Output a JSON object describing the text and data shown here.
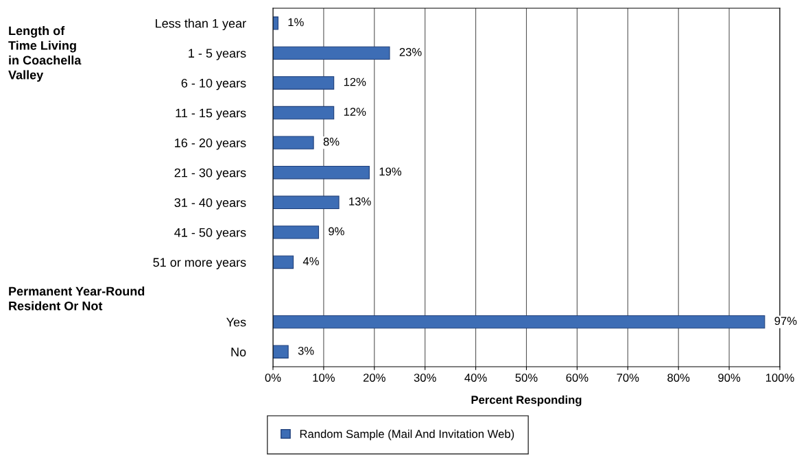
{
  "chart_data": {
    "type": "bar",
    "orientation": "horizontal",
    "xlabel": "Percent Responding",
    "categories": [
      "Less than 1 year",
      "1 - 5 years",
      "6 - 10 years",
      "11 - 15 years",
      "16 - 20 years",
      "21 - 30 years",
      "31 - 40 years",
      "41 - 50 years",
      "51 or more years",
      null,
      "Yes",
      "No"
    ],
    "series": [
      {
        "name": "Random Sample (Mail And Invitation Web)",
        "color": "#3d6db5",
        "values": [
          1,
          23,
          12,
          12,
          8,
          19,
          13,
          9,
          4,
          null,
          97,
          3
        ],
        "value_labels": [
          "1%",
          "23%",
          "12%",
          "12%",
          "8%",
          "19%",
          "13%",
          "9%",
          "4%",
          null,
          "97%",
          "3%"
        ]
      }
    ],
    "xlim": [
      0,
      100
    ],
    "xticks": [
      {
        "value": 0,
        "label": "0%"
      },
      {
        "value": 10,
        "label": "10%"
      },
      {
        "value": 20,
        "label": "20%"
      },
      {
        "value": 30,
        "label": "30%"
      },
      {
        "value": 40,
        "label": "40%"
      },
      {
        "value": 50,
        "label": "50%"
      },
      {
        "value": 60,
        "label": "60%"
      },
      {
        "value": 70,
        "label": "70%"
      },
      {
        "value": 80,
        "label": "80%"
      },
      {
        "value": 90,
        "label": "90%"
      },
      {
        "value": 100,
        "label": "100%"
      }
    ],
    "grid": "x",
    "legend": "bottom",
    "annotations": [
      "Length of\nTime Living\nin Coachella\nValley",
      "Permanent Year-Round\nResident Or Not"
    ]
  }
}
